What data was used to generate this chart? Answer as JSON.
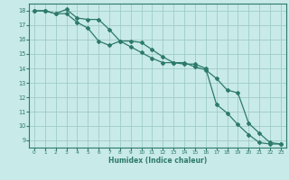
{
  "title": "",
  "xlabel": "Humidex (Indice chaleur)",
  "bg_color": "#c8eae8",
  "grid_color": "#a0ccc8",
  "line_color": "#2d7a6a",
  "x_values": [
    0,
    1,
    2,
    3,
    4,
    5,
    6,
    7,
    8,
    9,
    10,
    11,
    12,
    13,
    14,
    15,
    16,
    17,
    18,
    19,
    20,
    21,
    22,
    23
  ],
  "series1": [
    18.0,
    18.0,
    17.8,
    18.1,
    17.5,
    17.4,
    17.4,
    16.7,
    15.9,
    15.9,
    15.8,
    15.3,
    14.8,
    14.4,
    14.4,
    14.1,
    13.9,
    13.3,
    12.5,
    12.3,
    10.2,
    9.5,
    8.85,
    8.75
  ],
  "series2": [
    18.0,
    18.0,
    17.8,
    17.8,
    17.2,
    16.8,
    15.9,
    15.6,
    15.9,
    15.5,
    15.1,
    14.7,
    14.4,
    14.4,
    14.3,
    14.3,
    14.0,
    11.5,
    10.9,
    10.1,
    9.4,
    8.85,
    8.75,
    8.75
  ],
  "ylim": [
    8.5,
    18.5
  ],
  "xlim": [
    -0.5,
    23.5
  ],
  "yticks": [
    9,
    10,
    11,
    12,
    13,
    14,
    15,
    16,
    17,
    18
  ],
  "xticks": [
    0,
    1,
    2,
    3,
    4,
    5,
    6,
    7,
    8,
    9,
    10,
    11,
    12,
    13,
    14,
    15,
    16,
    17,
    18,
    19,
    20,
    21,
    22,
    23
  ]
}
